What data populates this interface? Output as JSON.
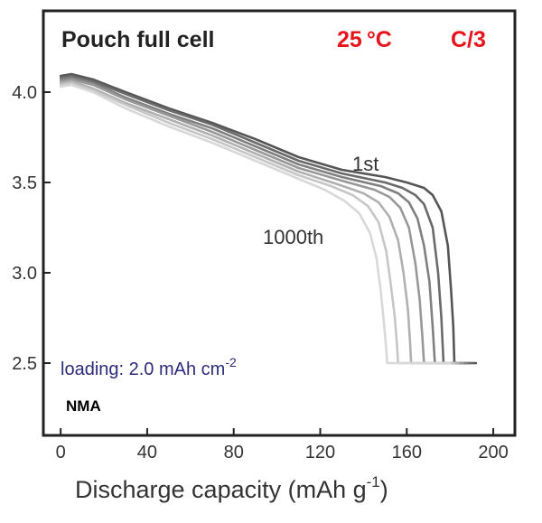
{
  "chart_data": {
    "type": "line",
    "title": "Pouch full cell",
    "temperature": "25",
    "temperature_unit": "°C",
    "rate": "C/3",
    "xlabel_main": "Discharge capacity (mAh g",
    "xlabel_sup": "-1",
    "xlabel_end": ")",
    "ylabel": "",
    "xlim": [
      -8,
      210
    ],
    "ylim": [
      2.1,
      4.45
    ],
    "x_ticks": [
      0,
      40,
      80,
      120,
      160,
      200
    ],
    "y_ticks": [
      2.5,
      3.0,
      3.5,
      4.0
    ],
    "y_tick_labels": [
      "2.5",
      "3.0",
      "3.5",
      "4.0"
    ],
    "grid": false,
    "annotations": {
      "first_cycle": "1st",
      "last_cycle": "1000th",
      "loading_main": "loading: 2.0 mAh cm",
      "loading_sup": "-2",
      "material": "NMA"
    },
    "colors": {
      "condition": "#e8141c",
      "loading": "#2b2b7a",
      "series": [
        "#555555",
        "#6a6a6a",
        "#808080",
        "#989898",
        "#b0b0b0",
        "#c6c6c6",
        "#d8d8d8"
      ]
    },
    "series": [
      {
        "cap": 182,
        "points": [
          [
            0,
            4.09
          ],
          [
            5,
            4.1
          ],
          [
            15,
            4.07
          ],
          [
            30,
            4.0
          ],
          [
            50,
            3.91
          ],
          [
            70,
            3.83
          ],
          [
            90,
            3.74
          ],
          [
            110,
            3.64
          ],
          [
            130,
            3.57
          ],
          [
            150,
            3.53
          ],
          [
            160,
            3.5
          ],
          [
            168,
            3.47
          ],
          [
            172,
            3.43
          ],
          [
            176,
            3.34
          ],
          [
            179,
            3.15
          ],
          [
            180.5,
            2.9
          ],
          [
            181.5,
            2.7
          ],
          [
            182,
            2.5
          ],
          [
            192,
            2.5
          ]
        ]
      },
      {
        "cap": 177,
        "points": [
          [
            0,
            4.08
          ],
          [
            5,
            4.09
          ],
          [
            15,
            4.06
          ],
          [
            30,
            3.99
          ],
          [
            50,
            3.9
          ],
          [
            70,
            3.82
          ],
          [
            90,
            3.72
          ],
          [
            110,
            3.62
          ],
          [
            130,
            3.55
          ],
          [
            150,
            3.5
          ],
          [
            158,
            3.47
          ],
          [
            164,
            3.43
          ],
          [
            168,
            3.38
          ],
          [
            172,
            3.25
          ],
          [
            174.5,
            3.0
          ],
          [
            176,
            2.75
          ],
          [
            177,
            2.5
          ],
          [
            190,
            2.5
          ]
        ]
      },
      {
        "cap": 173,
        "points": [
          [
            0,
            4.07
          ],
          [
            5,
            4.08
          ],
          [
            15,
            4.05
          ],
          [
            30,
            3.97
          ],
          [
            50,
            3.88
          ],
          [
            70,
            3.8
          ],
          [
            90,
            3.7
          ],
          [
            110,
            3.6
          ],
          [
            130,
            3.53
          ],
          [
            148,
            3.48
          ],
          [
            156,
            3.44
          ],
          [
            161,
            3.39
          ],
          [
            165,
            3.3
          ],
          [
            168,
            3.15
          ],
          [
            170.5,
            2.95
          ],
          [
            172,
            2.7
          ],
          [
            173,
            2.5
          ],
          [
            188,
            2.5
          ]
        ]
      },
      {
        "cap": 168,
        "points": [
          [
            0,
            4.06
          ],
          [
            5,
            4.07
          ],
          [
            15,
            4.04
          ],
          [
            30,
            3.96
          ],
          [
            50,
            3.87
          ],
          [
            70,
            3.78
          ],
          [
            90,
            3.68
          ],
          [
            110,
            3.58
          ],
          [
            130,
            3.51
          ],
          [
            145,
            3.46
          ],
          [
            152,
            3.42
          ],
          [
            157,
            3.36
          ],
          [
            161,
            3.25
          ],
          [
            164,
            3.05
          ],
          [
            166,
            2.85
          ],
          [
            167.2,
            2.65
          ],
          [
            168,
            2.5
          ],
          [
            186,
            2.5
          ]
        ]
      },
      {
        "cap": 162,
        "points": [
          [
            0,
            4.05
          ],
          [
            5,
            4.06
          ],
          [
            15,
            4.02
          ],
          [
            30,
            3.94
          ],
          [
            50,
            3.85
          ],
          [
            70,
            3.76
          ],
          [
            90,
            3.66
          ],
          [
            110,
            3.56
          ],
          [
            128,
            3.49
          ],
          [
            140,
            3.44
          ],
          [
            147,
            3.39
          ],
          [
            152,
            3.31
          ],
          [
            156,
            3.18
          ],
          [
            158.5,
            3.0
          ],
          [
            160.5,
            2.8
          ],
          [
            161.5,
            2.62
          ],
          [
            162,
            2.5
          ],
          [
            184,
            2.5
          ]
        ]
      },
      {
        "cap": 156,
        "points": [
          [
            0,
            4.04
          ],
          [
            5,
            4.05
          ],
          [
            15,
            4.01
          ],
          [
            30,
            3.93
          ],
          [
            50,
            3.83
          ],
          [
            70,
            3.74
          ],
          [
            90,
            3.64
          ],
          [
            110,
            3.54
          ],
          [
            125,
            3.48
          ],
          [
            135,
            3.43
          ],
          [
            142,
            3.37
          ],
          [
            147,
            3.28
          ],
          [
            150.5,
            3.12
          ],
          [
            152.5,
            2.95
          ],
          [
            154.5,
            2.75
          ],
          [
            155.5,
            2.6
          ],
          [
            156,
            2.5
          ],
          [
            182,
            2.5
          ]
        ]
      },
      {
        "cap": 151,
        "points": [
          [
            0,
            4.03
          ],
          [
            5,
            4.04
          ],
          [
            15,
            4.0
          ],
          [
            30,
            3.91
          ],
          [
            50,
            3.81
          ],
          [
            70,
            3.72
          ],
          [
            90,
            3.62
          ],
          [
            110,
            3.52
          ],
          [
            122,
            3.46
          ],
          [
            131,
            3.4
          ],
          [
            138,
            3.33
          ],
          [
            143,
            3.22
          ],
          [
            146,
            3.08
          ],
          [
            148,
            2.9
          ],
          [
            149.5,
            2.72
          ],
          [
            150.5,
            2.58
          ],
          [
            151,
            2.5
          ],
          [
            180,
            2.5
          ]
        ]
      }
    ]
  }
}
